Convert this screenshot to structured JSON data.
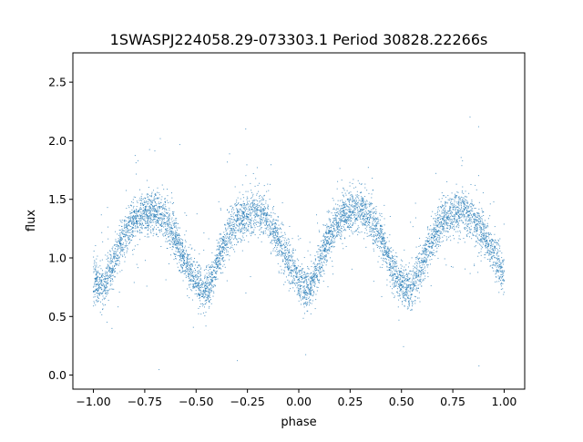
{
  "chart_data": {
    "type": "scatter",
    "title": "1SWASPJ224058.29-073303.1 Period 30828.22266s",
    "xlabel": "phase",
    "ylabel": "flux",
    "xlim": [
      -1.1,
      1.1
    ],
    "ylim": [
      -0.12,
      2.75
    ],
    "xticks": [
      -1.0,
      -0.75,
      -0.5,
      -0.25,
      0.0,
      0.25,
      0.5,
      0.75,
      1.0
    ],
    "xtick_labels": [
      "−1.00",
      "−0.75",
      "−0.50",
      "−0.25",
      "0.00",
      "0.25",
      "0.50",
      "0.75",
      "1.00"
    ],
    "yticks": [
      0.0,
      0.5,
      1.0,
      1.5,
      2.0,
      2.5
    ],
    "ytick_labels": [
      "0.0",
      "0.5",
      "1.0",
      "1.5",
      "2.0",
      "2.5"
    ],
    "grid": false,
    "marker_color": "#1f77b4",
    "series": [
      {
        "phase": [
          -1.0,
          -0.95,
          -0.9,
          -0.85,
          -0.8,
          -0.75,
          -0.7,
          -0.65,
          -0.6,
          -0.55,
          -0.5,
          -0.45,
          -0.4,
          -0.35,
          -0.3,
          -0.25,
          -0.2,
          -0.15,
          -0.1,
          -0.05,
          0.0,
          0.05,
          0.1,
          0.15,
          0.2,
          0.25,
          0.3,
          0.35,
          0.4,
          0.45,
          0.5,
          0.55,
          0.6,
          0.65,
          0.7,
          0.75,
          0.8,
          0.85,
          0.9,
          0.95,
          1.0
        ],
        "flux": [
          0.82,
          0.75,
          0.98,
          1.2,
          1.32,
          1.38,
          1.4,
          1.33,
          1.18,
          0.95,
          0.8,
          0.7,
          0.95,
          1.18,
          1.32,
          1.38,
          1.4,
          1.32,
          1.17,
          0.97,
          0.8,
          0.72,
          0.96,
          1.2,
          1.34,
          1.39,
          1.41,
          1.33,
          1.18,
          0.93,
          0.78,
          0.72,
          0.95,
          1.18,
          1.32,
          1.38,
          1.4,
          1.33,
          1.2,
          1.05,
          0.85
        ]
      }
    ]
  }
}
